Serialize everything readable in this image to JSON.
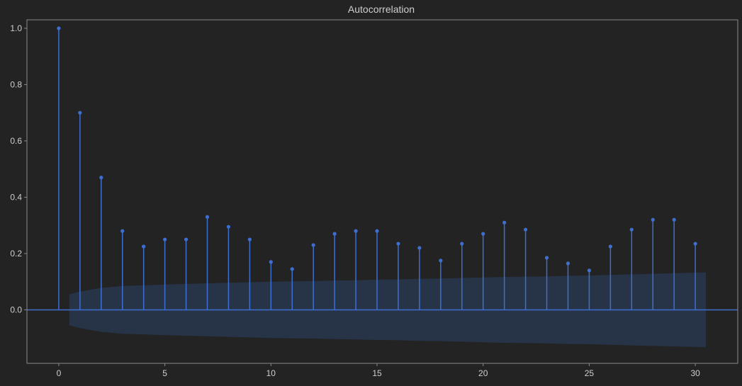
{
  "chart_data": {
    "type": "stem",
    "title": "Autocorrelation",
    "xlabel": "",
    "ylabel": "",
    "x": [
      0,
      1,
      2,
      3,
      4,
      5,
      6,
      7,
      8,
      9,
      10,
      11,
      12,
      13,
      14,
      15,
      16,
      17,
      18,
      19,
      20,
      21,
      22,
      23,
      24,
      25,
      26,
      27,
      28,
      29,
      30
    ],
    "values": [
      1.0,
      0.7,
      0.47,
      0.28,
      0.225,
      0.25,
      0.25,
      0.33,
      0.295,
      0.25,
      0.17,
      0.145,
      0.23,
      0.27,
      0.28,
      0.28,
      0.235,
      0.22,
      0.175,
      0.235,
      0.27,
      0.31,
      0.285,
      0.185,
      0.165,
      0.14,
      0.225,
      0.285,
      0.32,
      0.32,
      0.235
    ],
    "confidence_band": {
      "x": [
        0.5,
        1,
        2,
        3,
        4,
        5,
        6,
        7,
        8,
        9,
        10,
        11,
        12,
        13,
        14,
        15,
        16,
        17,
        18,
        19,
        20,
        21,
        22,
        23,
        24,
        25,
        26,
        27,
        28,
        29,
        30.5
      ],
      "upper": [
        0.055,
        0.065,
        0.078,
        0.085,
        0.087,
        0.09,
        0.092,
        0.094,
        0.096,
        0.098,
        0.1,
        0.101,
        0.102,
        0.104,
        0.105,
        0.107,
        0.108,
        0.11,
        0.111,
        0.113,
        0.115,
        0.117,
        0.118,
        0.119,
        0.121,
        0.122,
        0.124,
        0.126,
        0.128,
        0.13,
        0.133
      ],
      "lower": [
        -0.055,
        -0.065,
        -0.078,
        -0.085,
        -0.087,
        -0.09,
        -0.092,
        -0.094,
        -0.096,
        -0.098,
        -0.1,
        -0.101,
        -0.102,
        -0.104,
        -0.105,
        -0.107,
        -0.108,
        -0.11,
        -0.111,
        -0.113,
        -0.115,
        -0.117,
        -0.118,
        -0.119,
        -0.121,
        -0.122,
        -0.124,
        -0.126,
        -0.128,
        -0.13,
        -0.133
      ]
    },
    "xlim": [
      -1.5,
      32
    ],
    "ylim": [
      -0.19,
      1.03
    ],
    "xticks": [
      0,
      5,
      10,
      15,
      20,
      25,
      30
    ],
    "xtick_labels": [
      "0",
      "5",
      "10",
      "15",
      "20",
      "25",
      "30"
    ],
    "yticks": [
      0.0,
      0.2,
      0.4,
      0.6,
      0.8,
      1.0
    ],
    "ytick_labels": [
      "0.0",
      "0.2",
      "0.4",
      "0.6",
      "0.8",
      "1.0"
    ],
    "grid": false,
    "colors": {
      "background": "#232323",
      "spine": "#8a8a8a",
      "text": "#cfcfcf",
      "stem": "#3e6fd0",
      "marker": "#3e6fd0",
      "zero_line": "#3e6fd0",
      "band_fill": "#273448"
    }
  }
}
